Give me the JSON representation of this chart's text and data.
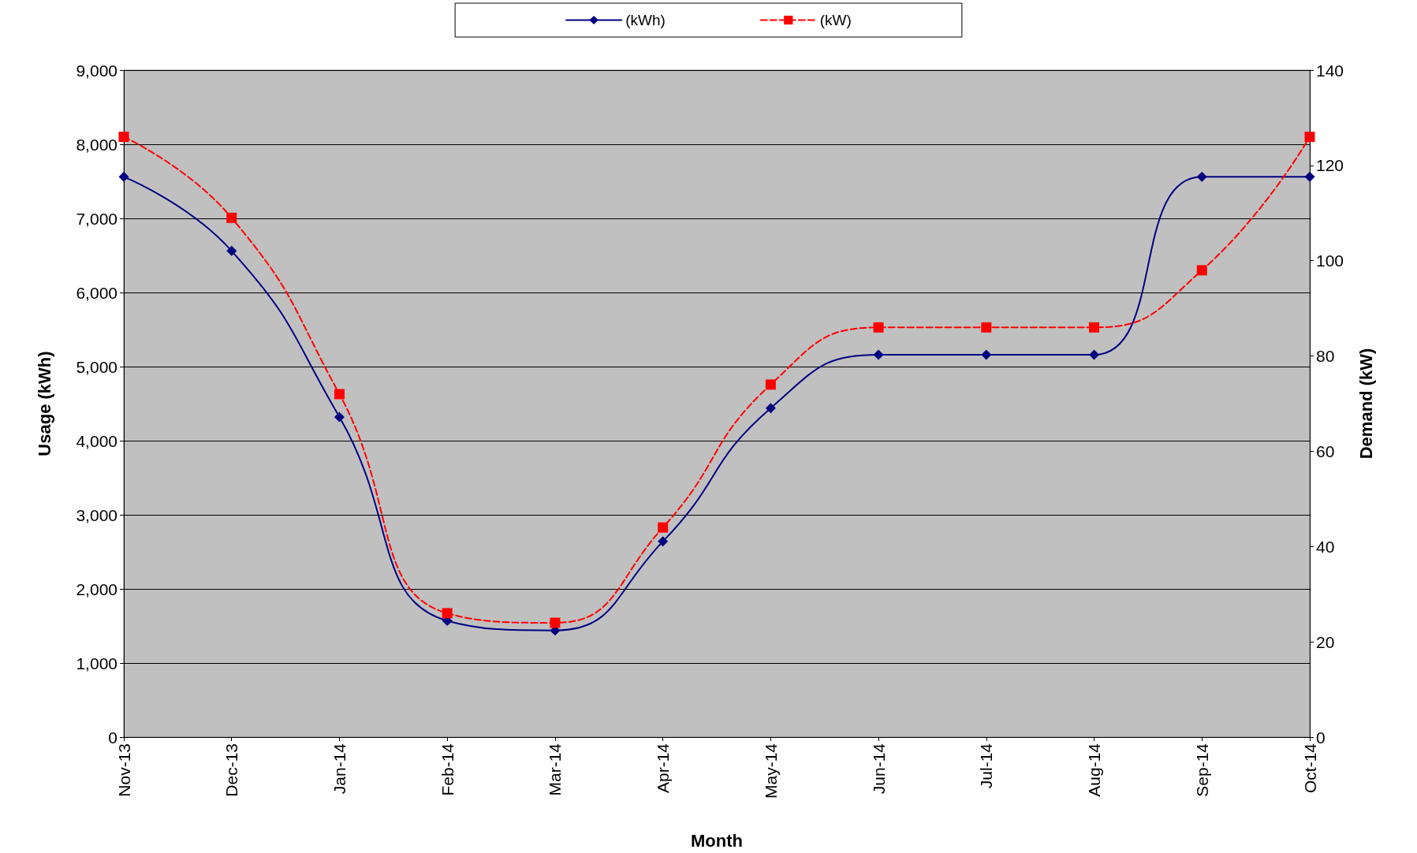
{
  "chart_data": {
    "type": "line",
    "xlabel": "Month",
    "ylabel": "Usage (kWh)",
    "y2label": "Demand (kW)",
    "categories": [
      "Nov-13",
      "Dec-13",
      "Jan-14",
      "Feb-14",
      "Mar-14",
      "Apr-14",
      "May-14",
      "Jun-14",
      "Jul-14",
      "Aug-14",
      "Sep-14",
      "Oct-14"
    ],
    "series": [
      {
        "name": "(kWh)",
        "color": "#000080",
        "marker": "diamond",
        "line_style": "solid",
        "values": [
          7560,
          6560,
          4320,
          1570,
          1440,
          2640,
          4440,
          5160,
          5160,
          5160,
          7560,
          7560
        ]
      },
      {
        "name": "(kW)",
        "color": "#ff0000",
        "marker": "square",
        "line_style": "dashed",
        "axis": "y2",
        "values": [
          126,
          109,
          72,
          26,
          24,
          44,
          74,
          86,
          86,
          86,
          98,
          126
        ]
      }
    ],
    "ylim": [
      0,
      9000
    ],
    "yticks": [
      {
        "value": 0,
        "label": "0"
      },
      {
        "value": 1000,
        "label": "1,000"
      },
      {
        "value": 2000,
        "label": "2,000"
      },
      {
        "value": 3000,
        "label": "3,000"
      },
      {
        "value": 4000,
        "label": "4,000"
      },
      {
        "value": 5000,
        "label": "5,000"
      },
      {
        "value": 6000,
        "label": "6,000"
      },
      {
        "value": 7000,
        "label": "7,000"
      },
      {
        "value": 8000,
        "label": "8,000"
      },
      {
        "value": 9000,
        "label": "9,000"
      }
    ],
    "y2lim": [
      0,
      140
    ],
    "y2ticks": [
      0,
      20,
      40,
      60,
      80,
      100,
      120,
      140
    ],
    "grid": "y",
    "legend": "top"
  }
}
